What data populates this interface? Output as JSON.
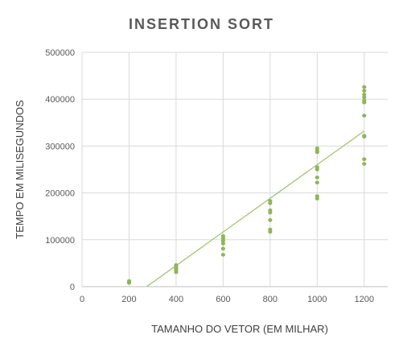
{
  "chart_data": {
    "type": "scatter",
    "title": "INSERTION SORT",
    "xlabel": "TAMANHO DO VETOR (EM MILHAR)",
    "ylabel": "TEMPO EM MILISEGUNDOS",
    "xlim": [
      0,
      1300
    ],
    "ylim": [
      0,
      500000
    ],
    "x_ticks": [
      0,
      200,
      400,
      600,
      800,
      1000,
      1200
    ],
    "y_ticks": [
      0,
      100000,
      200000,
      300000,
      400000,
      500000
    ],
    "x_tick_labels": [
      "0",
      "200",
      "400",
      "600",
      "800",
      "1000",
      "1200"
    ],
    "y_tick_labels": [
      "0",
      "100000",
      "200000",
      "300000",
      "400000",
      "500000"
    ],
    "grid": true,
    "marker_color": "#8fb55a",
    "trendline_color": "#9ac263",
    "points": [
      {
        "x": 200,
        "y": 12000
      },
      {
        "x": 200,
        "y": 10000
      },
      {
        "x": 200,
        "y": 8000
      },
      {
        "x": 400,
        "y": 46000
      },
      {
        "x": 400,
        "y": 42000
      },
      {
        "x": 400,
        "y": 38000
      },
      {
        "x": 400,
        "y": 34000
      },
      {
        "x": 400,
        "y": 31000
      },
      {
        "x": 600,
        "y": 108000
      },
      {
        "x": 600,
        "y": 103000
      },
      {
        "x": 600,
        "y": 98000
      },
      {
        "x": 600,
        "y": 92000
      },
      {
        "x": 600,
        "y": 81000
      },
      {
        "x": 600,
        "y": 68000
      },
      {
        "x": 800,
        "y": 183000
      },
      {
        "x": 800,
        "y": 178000
      },
      {
        "x": 800,
        "y": 163000
      },
      {
        "x": 800,
        "y": 158000
      },
      {
        "x": 800,
        "y": 142000
      },
      {
        "x": 800,
        "y": 122000
      },
      {
        "x": 800,
        "y": 117000
      },
      {
        "x": 1000,
        "y": 295000
      },
      {
        "x": 1000,
        "y": 290000
      },
      {
        "x": 1000,
        "y": 287000
      },
      {
        "x": 1000,
        "y": 255000
      },
      {
        "x": 1000,
        "y": 250000
      },
      {
        "x": 1000,
        "y": 233000
      },
      {
        "x": 1000,
        "y": 222000
      },
      {
        "x": 1000,
        "y": 193000
      },
      {
        "x": 1000,
        "y": 188000
      },
      {
        "x": 1200,
        "y": 426000
      },
      {
        "x": 1200,
        "y": 418000
      },
      {
        "x": 1200,
        "y": 410000
      },
      {
        "x": 1200,
        "y": 404000
      },
      {
        "x": 1200,
        "y": 397000
      },
      {
        "x": 1200,
        "y": 393000
      },
      {
        "x": 1200,
        "y": 365000
      },
      {
        "x": 1200,
        "y": 322000
      },
      {
        "x": 1200,
        "y": 320000
      },
      {
        "x": 1200,
        "y": 272000
      },
      {
        "x": 1200,
        "y": 262000
      }
    ],
    "trendline": {
      "type": "linear",
      "x": [
        275,
        1200
      ],
      "y": [
        0,
        332000
      ]
    }
  }
}
